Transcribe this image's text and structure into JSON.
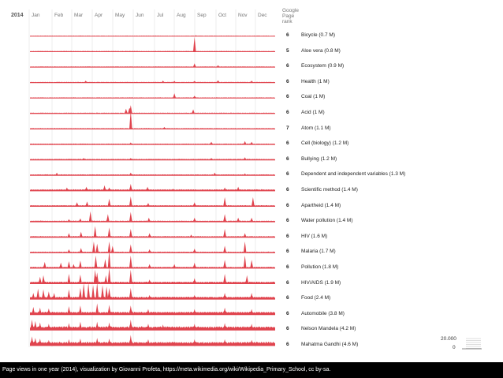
{
  "chart_data": {
    "type": "area",
    "title": "Page views in one year",
    "year_label": "2014",
    "months": [
      "Jan",
      "Feb",
      "Mar",
      "Apr",
      "May",
      "Jun",
      "Jul",
      "Aug",
      "Sep",
      "Oct",
      "Nov",
      "Dec"
    ],
    "rank_header": [
      "Google",
      "Page",
      "rank"
    ],
    "scale": {
      "max_label": "20.000",
      "min_label": "0"
    },
    "colors": {
      "area": "#e0444e",
      "grid": "#dddddd",
      "scale": "#bbbbbb"
    },
    "series": [
      {
        "name": "Bicycle (0.7 M)",
        "rank": "6",
        "baseline": 0.08,
        "spikes": [
          [
            247,
            0.15
          ]
        ]
      },
      {
        "name": "Aloe vera (0.8 M)",
        "rank": "5",
        "baseline": 0.1,
        "spikes": [
          [
            245,
            2.1
          ]
        ]
      },
      {
        "name": "Ecosystem (0.9 M)",
        "rank": "6",
        "baseline": 0.1,
        "spikes": [
          [
            245,
            0.55
          ],
          [
            280,
            0.3
          ]
        ]
      },
      {
        "name": "Health (1 M)",
        "rank": "6",
        "baseline": 0.1,
        "spikes": [
          [
            83,
            0.3
          ],
          [
            198,
            0.3
          ],
          [
            215,
            0.25
          ],
          [
            245,
            0.25
          ],
          [
            280,
            0.35
          ],
          [
            330,
            0.3
          ]
        ]
      },
      {
        "name": "Coal (1 M)",
        "rank": "6",
        "baseline": 0.1,
        "spikes": [
          [
            215,
            0.7
          ],
          [
            245,
            0.35
          ]
        ]
      },
      {
        "name": "Acid (1 M)",
        "rank": "6",
        "baseline": 0.12,
        "spikes": [
          [
            143,
            0.7
          ],
          [
            148,
            0.8
          ],
          [
            150,
            1.2
          ],
          [
            243,
            0.6
          ]
        ]
      },
      {
        "name": "Atom (1.1 M)",
        "rank": "7",
        "baseline": 0.12,
        "spikes": [
          [
            150,
            2.6
          ],
          [
            200,
            0.3
          ]
        ]
      },
      {
        "name": "Cell (biology) (1.2 M)",
        "rank": "6",
        "baseline": 0.12,
        "spikes": [
          [
            150,
            0.3
          ],
          [
            270,
            0.4
          ],
          [
            320,
            0.5
          ],
          [
            330,
            0.4
          ]
        ]
      },
      {
        "name": "Bullying (1.2 M)",
        "rank": "6",
        "baseline": 0.14,
        "spikes": [
          [
            80,
            0.3
          ],
          [
            150,
            0.3
          ],
          [
            270,
            0.3
          ],
          [
            320,
            0.4
          ]
        ]
      },
      {
        "name": "Dependent and independent variables (1.3 M)",
        "rank": "6",
        "baseline": 0.14,
        "spikes": [
          [
            40,
            0.4
          ],
          [
            150,
            0.4
          ],
          [
            275,
            0.4
          ],
          [
            320,
            0.3
          ]
        ]
      },
      {
        "name": "Scientific method (1.4 M)",
        "rank": "6",
        "baseline": 0.2,
        "spikes": [
          [
            55,
            0.5
          ],
          [
            84,
            0.6
          ],
          [
            111,
            0.8
          ],
          [
            118,
            0.5
          ],
          [
            150,
            1.0
          ],
          [
            175,
            0.6
          ],
          [
            213,
            0.3
          ],
          [
            290,
            0.5
          ],
          [
            310,
            0.6
          ]
        ]
      },
      {
        "name": "Apartheid (1.4 M)",
        "rank": "6",
        "baseline": 0.15,
        "spikes": [
          [
            70,
            0.6
          ],
          [
            85,
            0.7
          ],
          [
            118,
            1.1
          ],
          [
            150,
            1.4
          ],
          [
            176,
            0.5
          ],
          [
            245,
            0.6
          ],
          [
            290,
            1.3
          ],
          [
            332,
            1.3
          ]
        ]
      },
      {
        "name": "Water pollution (1.4 M)",
        "rank": "6",
        "baseline": 0.15,
        "spikes": [
          [
            58,
            0.4
          ],
          [
            75,
            0.5
          ],
          [
            90,
            1.5
          ],
          [
            116,
            1.1
          ],
          [
            150,
            1.4
          ],
          [
            177,
            0.6
          ],
          [
            245,
            0.6
          ],
          [
            290,
            1.1
          ],
          [
            310,
            0.6
          ],
          [
            330,
            0.6
          ]
        ]
      },
      {
        "name": "HIV (1.6 M)",
        "rank": "6",
        "baseline": 0.15,
        "spikes": [
          [
            58,
            0.6
          ],
          [
            76,
            0.8
          ],
          [
            97,
            1.6
          ],
          [
            118,
            1.4
          ],
          [
            150,
            1.2
          ],
          [
            178,
            0.6
          ],
          [
            240,
            0.4
          ],
          [
            290,
            1.2
          ],
          [
            320,
            0.6
          ]
        ]
      },
      {
        "name": "Malaria (1.7 M)",
        "rank": "6",
        "baseline": 0.15,
        "spikes": [
          [
            58,
            0.5
          ],
          [
            76,
            0.7
          ],
          [
            95,
            1.6
          ],
          [
            100,
            1.3
          ],
          [
            118,
            1.6
          ],
          [
            123,
            1.0
          ],
          [
            150,
            1.2
          ],
          [
            178,
            0.5
          ],
          [
            245,
            0.6
          ],
          [
            290,
            1.0
          ],
          [
            320,
            1.6
          ]
        ]
      },
      {
        "name": "Pollution (1.8 M)",
        "rank": "6",
        "baseline": 0.18,
        "spikes": [
          [
            22,
            0.9
          ],
          [
            46,
            0.8
          ],
          [
            58,
            1.0
          ],
          [
            65,
            0.6
          ],
          [
            75,
            1.1
          ],
          [
            98,
            1.8
          ],
          [
            112,
            1.3
          ],
          [
            118,
            2.5
          ],
          [
            150,
            1.8
          ],
          [
            178,
            0.6
          ],
          [
            215,
            0.6
          ],
          [
            245,
            0.8
          ],
          [
            290,
            1.2
          ],
          [
            320,
            1.8
          ],
          [
            330,
            1.2
          ]
        ]
      },
      {
        "name": "HIV/AIDS (1.9 M)",
        "rank": "6",
        "baseline": 0.25,
        "spikes": [
          [
            15,
            1.0
          ],
          [
            20,
            1.2
          ],
          [
            58,
            1.4
          ],
          [
            75,
            1.3
          ],
          [
            97,
            2.0
          ],
          [
            100,
            1.6
          ],
          [
            113,
            1.2
          ],
          [
            118,
            2.3
          ],
          [
            150,
            2.0
          ],
          [
            178,
            0.6
          ],
          [
            245,
            0.8
          ],
          [
            290,
            1.4
          ],
          [
            323,
            1.2
          ]
        ]
      },
      {
        "name": "Food (2.4 M)",
        "rank": "6",
        "baseline": 0.3,
        "spikes": [
          [
            5,
            0.9
          ],
          [
            12,
            1.5
          ],
          [
            20,
            1.4
          ],
          [
            28,
            1.1
          ],
          [
            36,
            0.9
          ],
          [
            58,
            1.4
          ],
          [
            75,
            1.6
          ],
          [
            80,
            2.3
          ],
          [
            87,
            2.3
          ],
          [
            94,
            2.0
          ],
          [
            100,
            2.4
          ],
          [
            108,
            2.0
          ],
          [
            114,
            1.8
          ],
          [
            118,
            1.6
          ],
          [
            150,
            1.6
          ],
          [
            178,
            0.6
          ],
          [
            245,
            0.6
          ],
          [
            290,
            0.9
          ],
          [
            330,
            0.9
          ]
        ]
      },
      {
        "name": "Automobile (3.8 M)",
        "rank": "6",
        "baseline": 0.35,
        "spikes": [
          [
            5,
            1.1
          ],
          [
            15,
            1.0
          ],
          [
            28,
            0.9
          ],
          [
            58,
            1.2
          ],
          [
            75,
            1.3
          ],
          [
            100,
            1.6
          ],
          [
            118,
            1.4
          ],
          [
            150,
            1.3
          ],
          [
            176,
            0.8
          ],
          [
            245,
            0.8
          ],
          [
            290,
            1.0
          ],
          [
            330,
            0.8
          ]
        ]
      },
      {
        "name": "Nelson Mandela (4.2 M)",
        "rank": "6",
        "baseline": 0.45,
        "spikes": [
          [
            3,
            1.5
          ],
          [
            8,
            1.3
          ],
          [
            15,
            1.1
          ],
          [
            28,
            0.9
          ],
          [
            58,
            1.0
          ],
          [
            75,
            1.2
          ],
          [
            100,
            1.2
          ],
          [
            118,
            1.1
          ],
          [
            150,
            1.5
          ],
          [
            176,
            0.9
          ],
          [
            198,
            0.8
          ],
          [
            245,
            0.9
          ],
          [
            290,
            1.0
          ],
          [
            330,
            0.9
          ]
        ]
      },
      {
        "name": "Mahatma Gandhi (4.6 M)",
        "rank": "6",
        "baseline": 0.45,
        "spikes": [
          [
            3,
            1.3
          ],
          [
            8,
            1.1
          ],
          [
            15,
            1.0
          ],
          [
            28,
            0.8
          ],
          [
            58,
            0.9
          ],
          [
            75,
            1.0
          ],
          [
            100,
            1.1
          ],
          [
            118,
            1.0
          ],
          [
            150,
            1.5
          ],
          [
            176,
            0.9
          ],
          [
            245,
            0.9
          ],
          [
            290,
            0.9
          ],
          [
            330,
            0.8
          ]
        ]
      }
    ]
  },
  "caption": "Page views in one year (2014), visualization by Giovanni Profeta, https://meta.wikimedia.org/wiki/Wikipedia_Primary_School, cc by-sa."
}
